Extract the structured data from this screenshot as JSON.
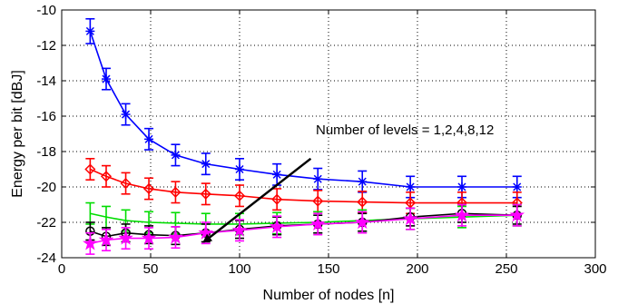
{
  "chart_data": {
    "type": "line",
    "title": "",
    "xlabel": "Number of nodes [n]",
    "ylabel": "Energy per bit [dBJ]",
    "xlim": [
      0,
      300
    ],
    "ylim": [
      -24,
      -10
    ],
    "x_ticks": [
      0,
      50,
      100,
      150,
      200,
      250,
      300
    ],
    "y_ticks": [
      -24,
      -22,
      -20,
      -18,
      -16,
      -14,
      -12,
      -10
    ],
    "x_tick_labels": [
      "0",
      "50",
      "100",
      "150",
      "200",
      "250",
      "300"
    ],
    "y_tick_labels": [
      "-24",
      "-22",
      "-20",
      "-18",
      "-16",
      "-14",
      "-12",
      "-10"
    ],
    "grid": "dotted",
    "x": [
      16,
      25,
      36,
      49,
      64,
      81,
      100,
      121,
      144,
      169,
      196,
      225,
      256
    ],
    "series": [
      {
        "color": "#0000ff",
        "marker": "asterisk",
        "values": [
          -11.2,
          -13.9,
          -15.9,
          -17.3,
          -18.2,
          -18.7,
          -19.0,
          -19.3,
          -19.55,
          -19.7,
          -20.0,
          -20.0,
          -20.0
        ],
        "error": [
          0.7,
          0.6,
          0.6,
          0.6,
          0.6,
          0.6,
          0.6,
          0.6,
          0.6,
          0.6,
          0.6,
          0.6,
          0.6
        ]
      },
      {
        "color": "#ff0000",
        "marker": "diamond",
        "values": [
          -19.0,
          -19.4,
          -19.8,
          -20.1,
          -20.3,
          -20.4,
          -20.5,
          -20.7,
          -20.8,
          -20.85,
          -20.9,
          -20.9,
          -20.9
        ],
        "error": [
          0.6,
          0.6,
          0.6,
          0.6,
          0.6,
          0.6,
          0.6,
          0.6,
          0.6,
          0.6,
          0.6,
          0.6,
          0.6
        ]
      },
      {
        "color": "#00dd00",
        "marker": "none",
        "values": [
          -21.5,
          -21.7,
          -21.9,
          -22.0,
          -22.05,
          -22.1,
          -22.1,
          -22.05,
          -22.0,
          -21.9,
          -21.8,
          -21.7,
          -21.6
        ],
        "error": [
          0.6,
          0.6,
          0.6,
          0.6,
          0.6,
          0.6,
          0.6,
          0.6,
          0.6,
          0.6,
          0.6,
          0.6,
          0.6
        ]
      },
      {
        "color": "#000000",
        "marker": "circle",
        "values": [
          -22.5,
          -22.8,
          -22.6,
          -22.7,
          -22.75,
          -22.6,
          -22.4,
          -22.2,
          -22.1,
          -22.0,
          -21.7,
          -21.5,
          -21.6
        ],
        "error": [
          0.5,
          0.5,
          0.5,
          0.5,
          0.5,
          0.5,
          0.5,
          0.5,
          0.5,
          0.5,
          0.5,
          0.5,
          0.5
        ]
      },
      {
        "color": "#ff00ff",
        "marker": "star",
        "values": [
          -23.2,
          -23.0,
          -22.9,
          -22.9,
          -22.85,
          -22.6,
          -22.45,
          -22.25,
          -22.1,
          -22.0,
          -21.8,
          -21.6,
          -21.6
        ],
        "error": [
          0.6,
          0.6,
          0.6,
          0.6,
          0.6,
          0.6,
          0.6,
          0.6,
          0.6,
          0.6,
          0.6,
          0.6,
          0.6
        ]
      }
    ],
    "annotation": {
      "text": "Number of levels = 1,2,4,8,12",
      "arrow_from": [
        140,
        -18.4
      ],
      "arrow_to": [
        80,
        -23.1
      ]
    }
  }
}
